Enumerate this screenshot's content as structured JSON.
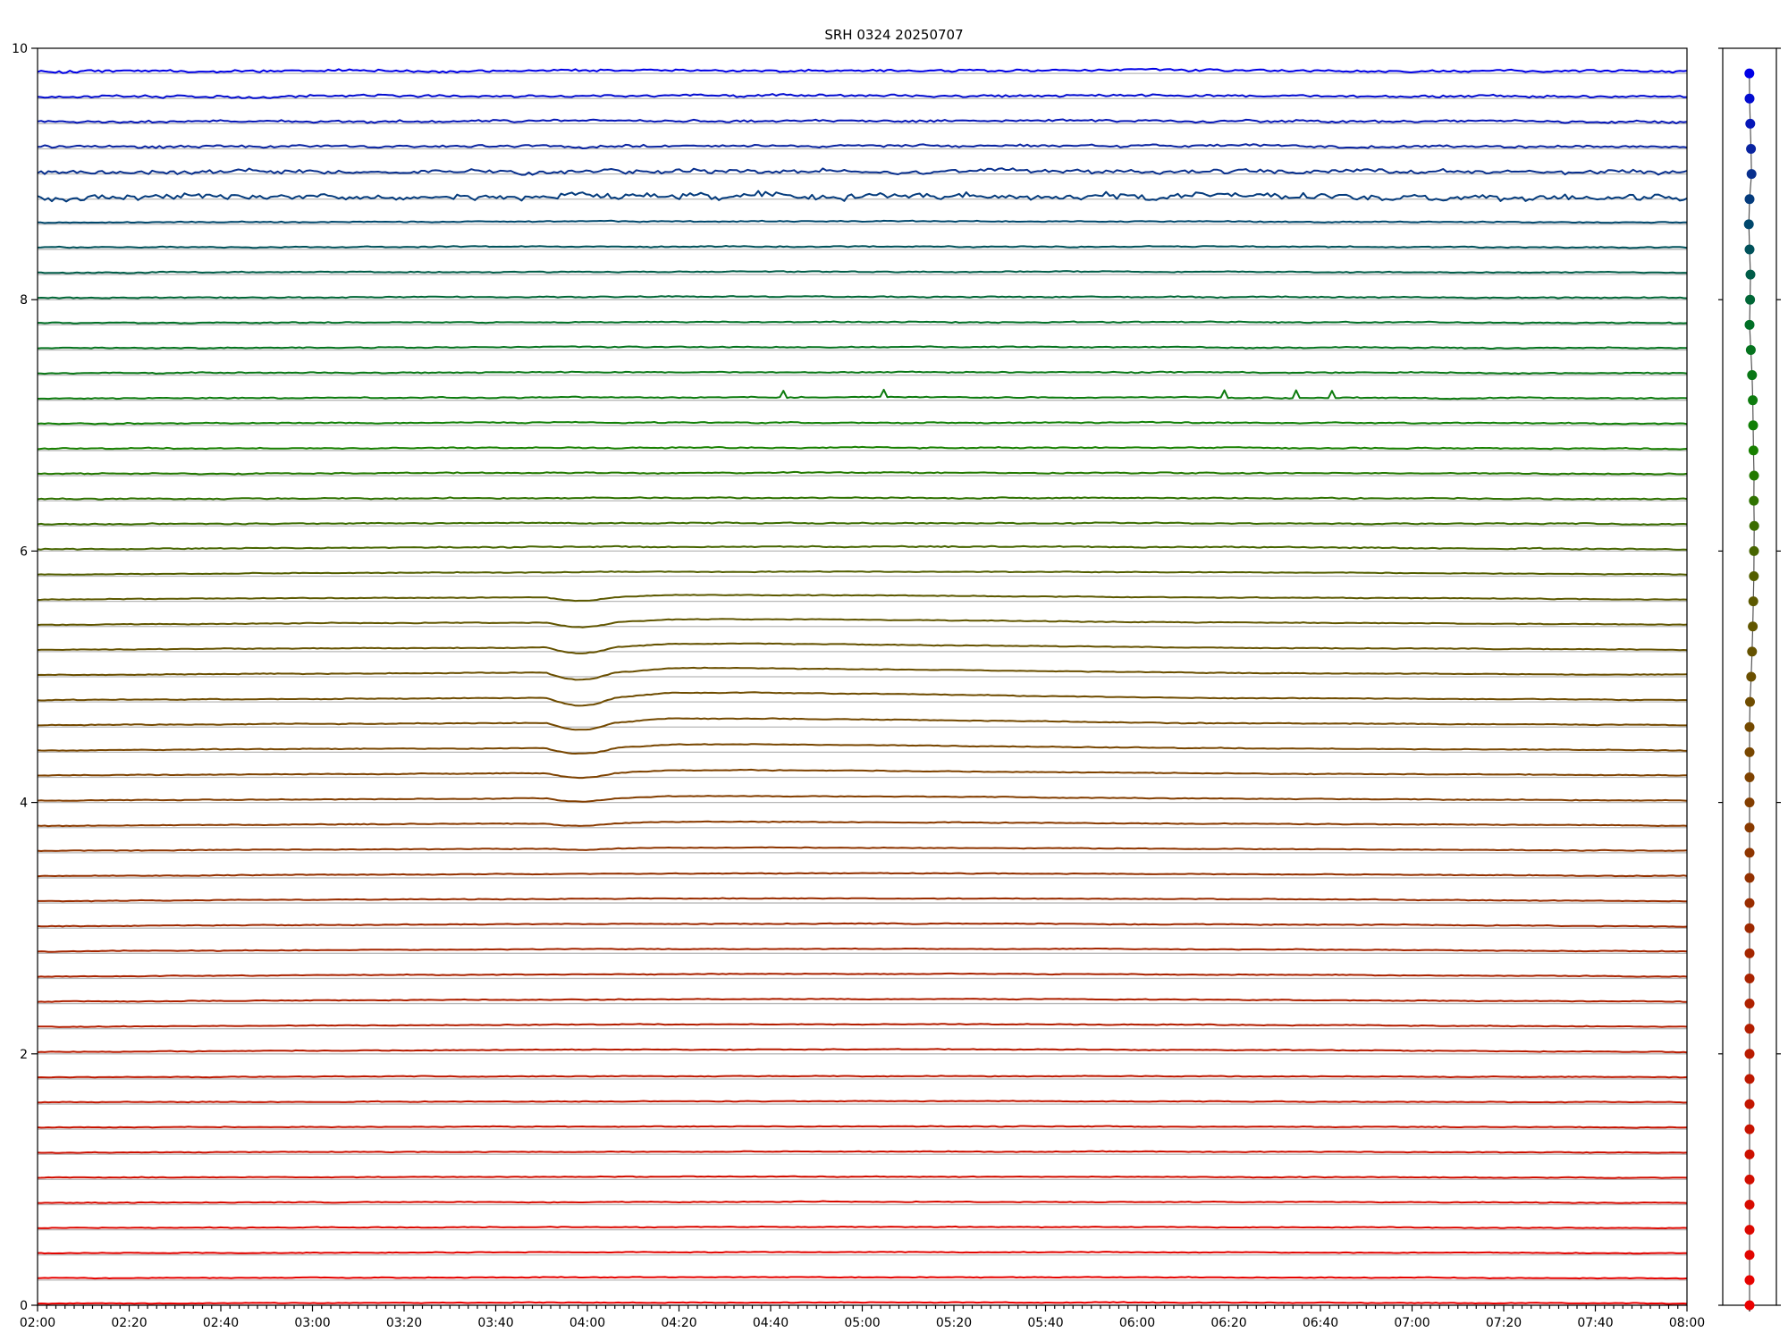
{
  "chart_data": {
    "type": "line",
    "title": "SRH 0324 20250707",
    "xlabel": "",
    "ylabel": "",
    "x_ticks": [
      "02:00",
      "02:20",
      "02:40",
      "03:00",
      "03:20",
      "03:40",
      "04:00",
      "04:20",
      "04:40",
      "05:00",
      "05:20",
      "05:40",
      "06:00",
      "06:20",
      "06:40",
      "07:00",
      "07:20",
      "07:40",
      "08:00"
    ],
    "y_ticks": [
      "0",
      "2",
      "4",
      "6",
      "8",
      "10"
    ],
    "xlim": [
      "02:00",
      "08:00"
    ],
    "ylim": [
      0,
      10
    ],
    "grid": false,
    "legend": "none",
    "series_count": 50,
    "series_spacing": 0.2,
    "colors": {
      "low": "#ff0000",
      "high": "#0000ff",
      "reference": "#b8b8b8"
    },
    "marker_panel": {
      "type": "scatter",
      "marker_count": 50,
      "offsets": [
        0,
        0,
        0,
        0,
        0,
        0,
        0,
        0,
        0,
        0,
        0,
        0,
        0,
        0,
        0,
        0,
        0,
        0,
        0,
        0,
        0,
        0,
        0,
        0,
        0.05,
        0.18,
        0.28,
        0.36,
        0.42,
        0.48,
        0.5,
        0.52,
        0.48,
        0.5,
        0.44,
        0.4,
        0.36,
        0.28,
        0.14,
        0,
        0.06,
        0.1,
        0,
        -0.08,
        0,
        0.22,
        0.16,
        0.08,
        0,
        -0.02
      ]
    }
  }
}
